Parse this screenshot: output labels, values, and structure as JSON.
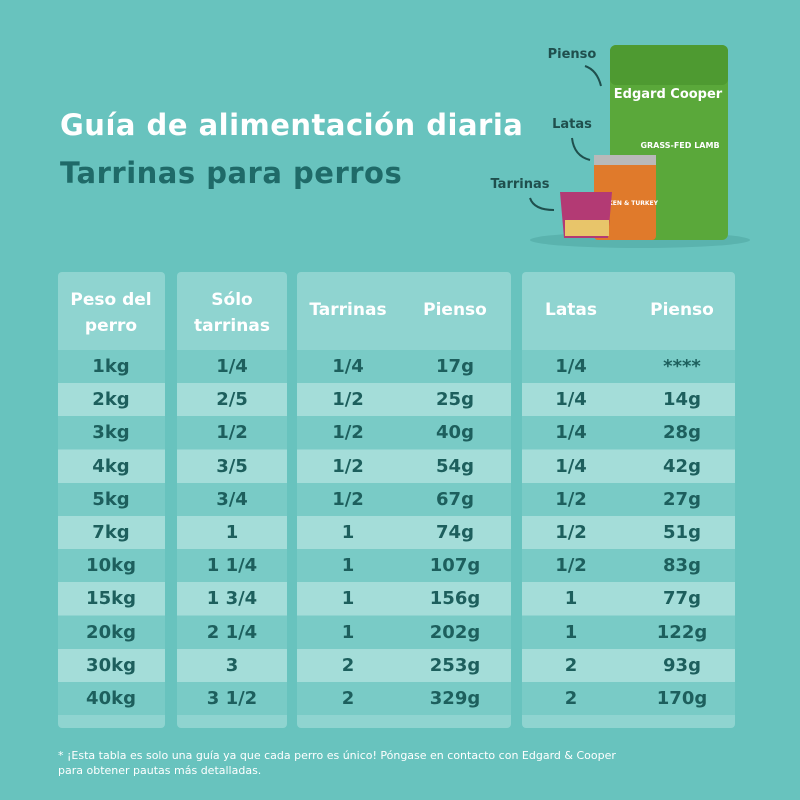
{
  "header": {
    "title": "Guía de alimentación diaria",
    "subtitle": "Tarrinas para perros"
  },
  "products": {
    "labels": [
      "Pienso",
      "Latas",
      "Tarrinas"
    ],
    "bag_brand": "Edgard Cooper",
    "bag_flavor": "GRASS-FED LAMB",
    "can_flavor": "CHICKEN & TURKEY"
  },
  "table": {
    "headers": [
      "Peso del perro",
      "Sólo tarrinas",
      "Tarrinas",
      "Pienso",
      "Latas",
      "Pienso"
    ],
    "rows": [
      [
        "1kg",
        "1/4",
        "1/4",
        "17g",
        "1/4",
        "****"
      ],
      [
        "2kg",
        "2/5",
        "1/2",
        "25g",
        "1/4",
        "14g"
      ],
      [
        "3kg",
        "1/2",
        "1/2",
        "40g",
        "1/4",
        "28g"
      ],
      [
        "4kg",
        "3/5",
        "1/2",
        "54g",
        "1/4",
        "42g"
      ],
      [
        "5kg",
        "3/4",
        "1/2",
        "67g",
        "1/2",
        "27g"
      ],
      [
        "7kg",
        "1",
        "1",
        "74g",
        "1/2",
        "51g"
      ],
      [
        "10kg",
        "1 1/4",
        "1",
        "107g",
        "1/2",
        "83g"
      ],
      [
        "15kg",
        "1 3/4",
        "1",
        "156g",
        "1",
        "77g"
      ],
      [
        "20kg",
        "2 1/4",
        "1",
        "202g",
        "1",
        "122g"
      ],
      [
        "30kg",
        "3",
        "2",
        "253g",
        "2",
        "93g"
      ],
      [
        "40kg",
        "3 1/2",
        "2",
        "329g",
        "2",
        "170g"
      ]
    ]
  },
  "footnote": "* ¡Esta tabla es solo una guía ya que cada perro es único! Póngase en contacto con Edgard & Cooper para obtener pautas más detalladas."
}
